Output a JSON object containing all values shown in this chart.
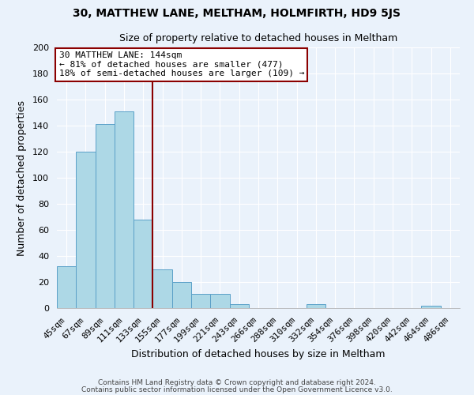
{
  "title": "30, MATTHEW LANE, MELTHAM, HOLMFIRTH, HD9 5JS",
  "subtitle": "Size of property relative to detached houses in Meltham",
  "xlabel": "Distribution of detached houses by size in Meltham",
  "ylabel": "Number of detached properties",
  "footnote1": "Contains HM Land Registry data © Crown copyright and database right 2024.",
  "footnote2": "Contains public sector information licensed under the Open Government Licence v3.0.",
  "bar_labels": [
    "45sqm",
    "67sqm",
    "89sqm",
    "111sqm",
    "133sqm",
    "155sqm",
    "177sqm",
    "199sqm",
    "221sqm",
    "243sqm",
    "266sqm",
    "288sqm",
    "310sqm",
    "332sqm",
    "354sqm",
    "376sqm",
    "398sqm",
    "420sqm",
    "442sqm",
    "464sqm",
    "486sqm"
  ],
  "bar_values": [
    32,
    120,
    141,
    151,
    68,
    30,
    20,
    11,
    11,
    3,
    0,
    0,
    0,
    3,
    0,
    0,
    0,
    0,
    0,
    2,
    0
  ],
  "bar_color": "#add8e6",
  "bar_edgecolor": "#5aa0c8",
  "vline_x": 4.5,
  "vline_color": "#8b0000",
  "ylim": [
    0,
    200
  ],
  "yticks": [
    0,
    20,
    40,
    60,
    80,
    100,
    120,
    140,
    160,
    180,
    200
  ],
  "bg_color": "#eaf2fb",
  "grid_color": "#ffffff",
  "annotation_line1": "30 MATTHEW LANE: 144sqm",
  "annotation_line2": "← 81% of detached houses are smaller (477)",
  "annotation_line3": "18% of semi-detached houses are larger (109) →",
  "annotation_box_color": "white",
  "annotation_box_edgecolor": "#8b0000",
  "title_fontsize": 10,
  "subtitle_fontsize": 9,
  "ylabel_fontsize": 9,
  "xlabel_fontsize": 9,
  "tick_fontsize": 8,
  "annotation_fontsize": 8,
  "footnote_fontsize": 6.5
}
